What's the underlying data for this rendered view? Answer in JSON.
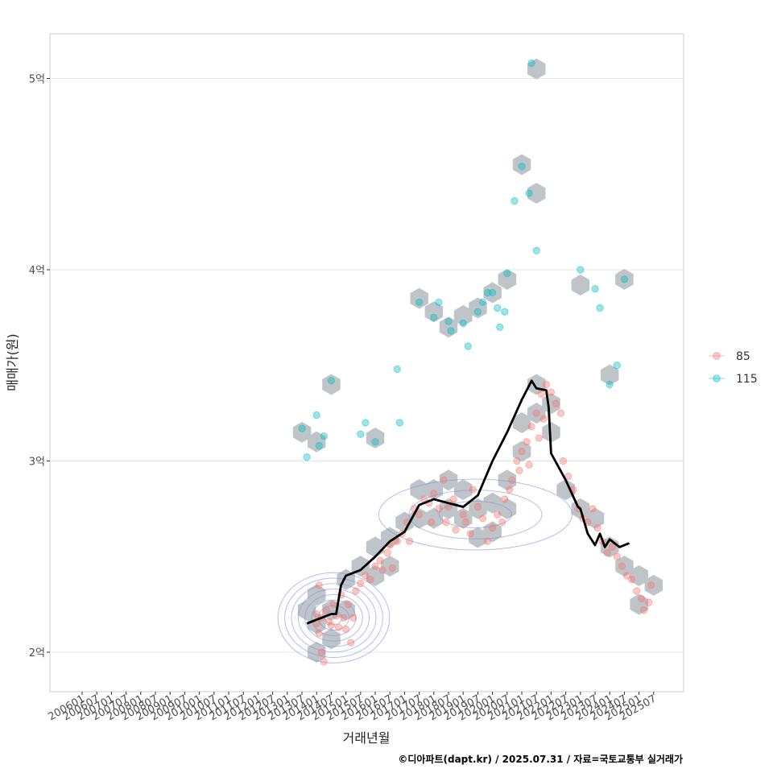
{
  "chart_data": {
    "type": "scatter",
    "xlabel": "거래년월",
    "ylabel": "매매가(원)",
    "caption": "©디아파트(dapt.kr) / 2025.07.31 / 자료=국토교통부 실거래가",
    "x_ticks": [
      "200601",
      "200607",
      "200701",
      "200707",
      "200801",
      "200807",
      "200901",
      "200907",
      "201001",
      "201007",
      "201101",
      "201107",
      "201201",
      "201207",
      "201301",
      "201307",
      "201401",
      "201407",
      "201501",
      "201507",
      "201601",
      "201607",
      "201701",
      "201707",
      "201801",
      "201807",
      "201901",
      "201907",
      "202001",
      "202007",
      "202101",
      "202107",
      "202201",
      "202207",
      "202301",
      "202307",
      "202401",
      "202407",
      "202501",
      "202507"
    ],
    "y_ticks": [
      {
        "value": 200000000,
        "label": "2억"
      },
      {
        "value": 300000000,
        "label": "3억"
      },
      {
        "value": 400000000,
        "label": "4억"
      },
      {
        "value": 500000000,
        "label": "5억"
      }
    ],
    "xlim": [
      "200601",
      "202512"
    ],
    "ylim": [
      180000000,
      525000000
    ],
    "grid": "horizontal",
    "legend_position": "right",
    "colors": {
      "s85": "#F8766D",
      "s115": "#00BFC4",
      "hex": "#BFC4C9",
      "density": "#7A93E0",
      "trend": "#000000"
    },
    "series": [
      {
        "name": "85",
        "color": "#F8766D",
        "points": [
          [
            "201401",
            220000000
          ],
          [
            "201401",
            215000000
          ],
          [
            "201402",
            235000000
          ],
          [
            "201402",
            210000000
          ],
          [
            "201403",
            218000000
          ],
          [
            "201403",
            200000000
          ],
          [
            "201404",
            195000000
          ],
          [
            "201405",
            222000000
          ],
          [
            "201406",
            216000000
          ],
          [
            "201407",
            214000000
          ],
          [
            "201408",
            225000000
          ],
          [
            "201409",
            219000000
          ],
          [
            "201410",
            213000000
          ],
          [
            "201411",
            230000000
          ],
          [
            "201412",
            218000000
          ],
          [
            "201501",
            212000000
          ],
          [
            "201502",
            225000000
          ],
          [
            "201503",
            205000000
          ],
          [
            "201504",
            218000000
          ],
          [
            "201505",
            232000000
          ],
          [
            "201507",
            236000000
          ],
          [
            "201509",
            240000000
          ],
          [
            "201511",
            238000000
          ],
          [
            "201601",
            245000000
          ],
          [
            "201603",
            248000000
          ],
          [
            "201604",
            243000000
          ],
          [
            "201606",
            252000000
          ],
          [
            "201607",
            256000000
          ],
          [
            "201608",
            244000000
          ],
          [
            "201610",
            258000000
          ],
          [
            "201612",
            262000000
          ],
          [
            "201702",
            268000000
          ],
          [
            "201703",
            258000000
          ],
          [
            "201705",
            275000000
          ],
          [
            "201707",
            272000000
          ],
          [
            "201709",
            280000000
          ],
          [
            "201711",
            278000000
          ],
          [
            "201712",
            268000000
          ],
          [
            "201801",
            283000000
          ],
          [
            "201803",
            275000000
          ],
          [
            "201805",
            290000000
          ],
          [
            "201806",
            268000000
          ],
          [
            "201807",
            276000000
          ],
          [
            "201809",
            280000000
          ],
          [
            "201810",
            264000000
          ],
          [
            "201901",
            272000000
          ],
          [
            "201902",
            268000000
          ],
          [
            "201904",
            262000000
          ],
          [
            "201905",
            285000000
          ],
          [
            "201907",
            276000000
          ],
          [
            "201909",
            270000000
          ],
          [
            "201911",
            258000000
          ],
          [
            "202001",
            265000000
          ],
          [
            "202003",
            272000000
          ],
          [
            "202005",
            268000000
          ],
          [
            "202006",
            280000000
          ],
          [
            "202008",
            285000000
          ],
          [
            "202009",
            290000000
          ],
          [
            "202011",
            300000000
          ],
          [
            "202012",
            295000000
          ],
          [
            "202101",
            305000000
          ],
          [
            "202103",
            310000000
          ],
          [
            "202104",
            298000000
          ],
          [
            "202105",
            318000000
          ],
          [
            "202107",
            325000000
          ],
          [
            "202108",
            312000000
          ],
          [
            "202109",
            335000000
          ],
          [
            "202110",
            322000000
          ],
          [
            "202111",
            340000000
          ],
          [
            "202201",
            336000000
          ],
          [
            "202203",
            330000000
          ],
          [
            "202205",
            325000000
          ],
          [
            "202206",
            300000000
          ],
          [
            "202208",
            292000000
          ],
          [
            "202210",
            285000000
          ],
          [
            "202212",
            275000000
          ],
          [
            "202302",
            270000000
          ],
          [
            "202304",
            268000000
          ],
          [
            "202306",
            275000000
          ],
          [
            "202308",
            265000000
          ],
          [
            "202310",
            258000000
          ],
          [
            "202312",
            252000000
          ],
          [
            "202402",
            255000000
          ],
          [
            "202404",
            250000000
          ],
          [
            "202406",
            245000000
          ],
          [
            "202408",
            240000000
          ],
          [
            "202410",
            238000000
          ],
          [
            "202412",
            232000000
          ],
          [
            "202502",
            228000000
          ],
          [
            "202503",
            222000000
          ],
          [
            "202505",
            226000000
          ],
          [
            "202506",
            235000000
          ]
        ]
      },
      {
        "name": "115",
        "color": "#00BFC4",
        "points": [
          [
            "201307",
            317000000
          ],
          [
            "201309",
            302000000
          ],
          [
            "201401",
            324000000
          ],
          [
            "201402",
            308000000
          ],
          [
            "201404",
            313000000
          ],
          [
            "201407",
            342000000
          ],
          [
            "201507",
            314000000
          ],
          [
            "201509",
            320000000
          ],
          [
            "201601",
            310000000
          ],
          [
            "201610",
            348000000
          ],
          [
            "201611",
            320000000
          ],
          [
            "201707",
            383000000
          ],
          [
            "201801",
            375000000
          ],
          [
            "201803",
            383000000
          ],
          [
            "201807",
            373000000
          ],
          [
            "201808",
            368000000
          ],
          [
            "201901",
            372000000
          ],
          [
            "201903",
            360000000
          ],
          [
            "201907",
            378000000
          ],
          [
            "201909",
            383000000
          ],
          [
            "201911",
            388000000
          ],
          [
            "202001",
            388000000
          ],
          [
            "202003",
            380000000
          ],
          [
            "202004",
            370000000
          ],
          [
            "202006",
            378000000
          ],
          [
            "202007",
            398000000
          ],
          [
            "202010",
            436000000
          ],
          [
            "202101",
            454000000
          ],
          [
            "202104",
            440000000
          ],
          [
            "202105",
            508000000
          ],
          [
            "202107",
            410000000
          ],
          [
            "202301",
            400000000
          ],
          [
            "202307",
            390000000
          ],
          [
            "202309",
            380000000
          ],
          [
            "202401",
            340000000
          ],
          [
            "202404",
            350000000
          ],
          [
            "202407",
            395000000
          ]
        ]
      }
    ],
    "trend": [
      [
        "201309",
        215000000
      ],
      [
        "201401",
        217000000
      ],
      [
        "201403",
        218000000
      ],
      [
        "201407",
        220000000
      ],
      [
        "201409",
        220000000
      ],
      [
        "201411",
        235000000
      ],
      [
        "201501",
        240000000
      ],
      [
        "201507",
        243000000
      ],
      [
        "201601",
        250000000
      ],
      [
        "201607",
        258000000
      ],
      [
        "201701",
        263000000
      ],
      [
        "201707",
        277000000
      ],
      [
        "201801",
        280000000
      ],
      [
        "201807",
        278000000
      ],
      [
        "201901",
        276000000
      ],
      [
        "201907",
        282000000
      ],
      [
        "202001",
        300000000
      ],
      [
        "202007",
        315000000
      ],
      [
        "202101",
        332000000
      ],
      [
        "202105",
        342000000
      ],
      [
        "202107",
        338000000
      ],
      [
        "202111",
        337000000
      ],
      [
        "202112",
        328000000
      ],
      [
        "202201",
        304000000
      ],
      [
        "202207",
        290000000
      ],
      [
        "202212",
        276000000
      ],
      [
        "202301",
        275000000
      ],
      [
        "202304",
        262000000
      ],
      [
        "202307",
        256000000
      ],
      [
        "202309",
        262000000
      ],
      [
        "202311",
        255000000
      ],
      [
        "202401",
        259000000
      ],
      [
        "202405",
        255000000
      ],
      [
        "202409",
        257000000
      ]
    ],
    "hexbins": [
      [
        "201309",
        222000000
      ],
      [
        "201401",
        230000000
      ],
      [
        "201401",
        215000000
      ],
      [
        "201401",
        200000000
      ],
      [
        "201407",
        222000000
      ],
      [
        "201407",
        207000000
      ],
      [
        "201501",
        238000000
      ],
      [
        "201501",
        222000000
      ],
      [
        "201507",
        245000000
      ],
      [
        "201601",
        255000000
      ],
      [
        "201601",
        240000000
      ],
      [
        "201607",
        260000000
      ],
      [
        "201607",
        245000000
      ],
      [
        "201701",
        268000000
      ],
      [
        "201707",
        285000000
      ],
      [
        "201707",
        270000000
      ],
      [
        "201801",
        285000000
      ],
      [
        "201801",
        270000000
      ],
      [
        "201807",
        290000000
      ],
      [
        "201807",
        275000000
      ],
      [
        "201901",
        285000000
      ],
      [
        "201901",
        270000000
      ],
      [
        "201907",
        275000000
      ],
      [
        "201907",
        260000000
      ],
      [
        "202001",
        278000000
      ],
      [
        "202001",
        263000000
      ],
      [
        "202007",
        290000000
      ],
      [
        "202007",
        275000000
      ],
      [
        "202101",
        305000000
      ],
      [
        "202101",
        320000000
      ],
      [
        "202107",
        325000000
      ],
      [
        "202107",
        340000000
      ],
      [
        "202201",
        330000000
      ],
      [
        "202201",
        315000000
      ],
      [
        "202207",
        285000000
      ],
      [
        "202301",
        275000000
      ],
      [
        "202307",
        270000000
      ],
      [
        "202401",
        255000000
      ],
      [
        "202407",
        245000000
      ],
      [
        "202501",
        240000000
      ],
      [
        "202501",
        225000000
      ],
      [
        "202507",
        235000000
      ],
      [
        "201307",
        315000000
      ],
      [
        "201401",
        310000000
      ],
      [
        "201407",
        340000000
      ],
      [
        "201601",
        312000000
      ],
      [
        "201707",
        385000000
      ],
      [
        "201801",
        378000000
      ],
      [
        "201807",
        370000000
      ],
      [
        "201901",
        376000000
      ],
      [
        "201907",
        380000000
      ],
      [
        "202001",
        388000000
      ],
      [
        "202007",
        395000000
      ],
      [
        "202101",
        455000000
      ],
      [
        "202107",
        505000000
      ],
      [
        "202107",
        440000000
      ],
      [
        "202301",
        392000000
      ],
      [
        "202401",
        345000000
      ],
      [
        "202407",
        395000000
      ]
    ]
  }
}
